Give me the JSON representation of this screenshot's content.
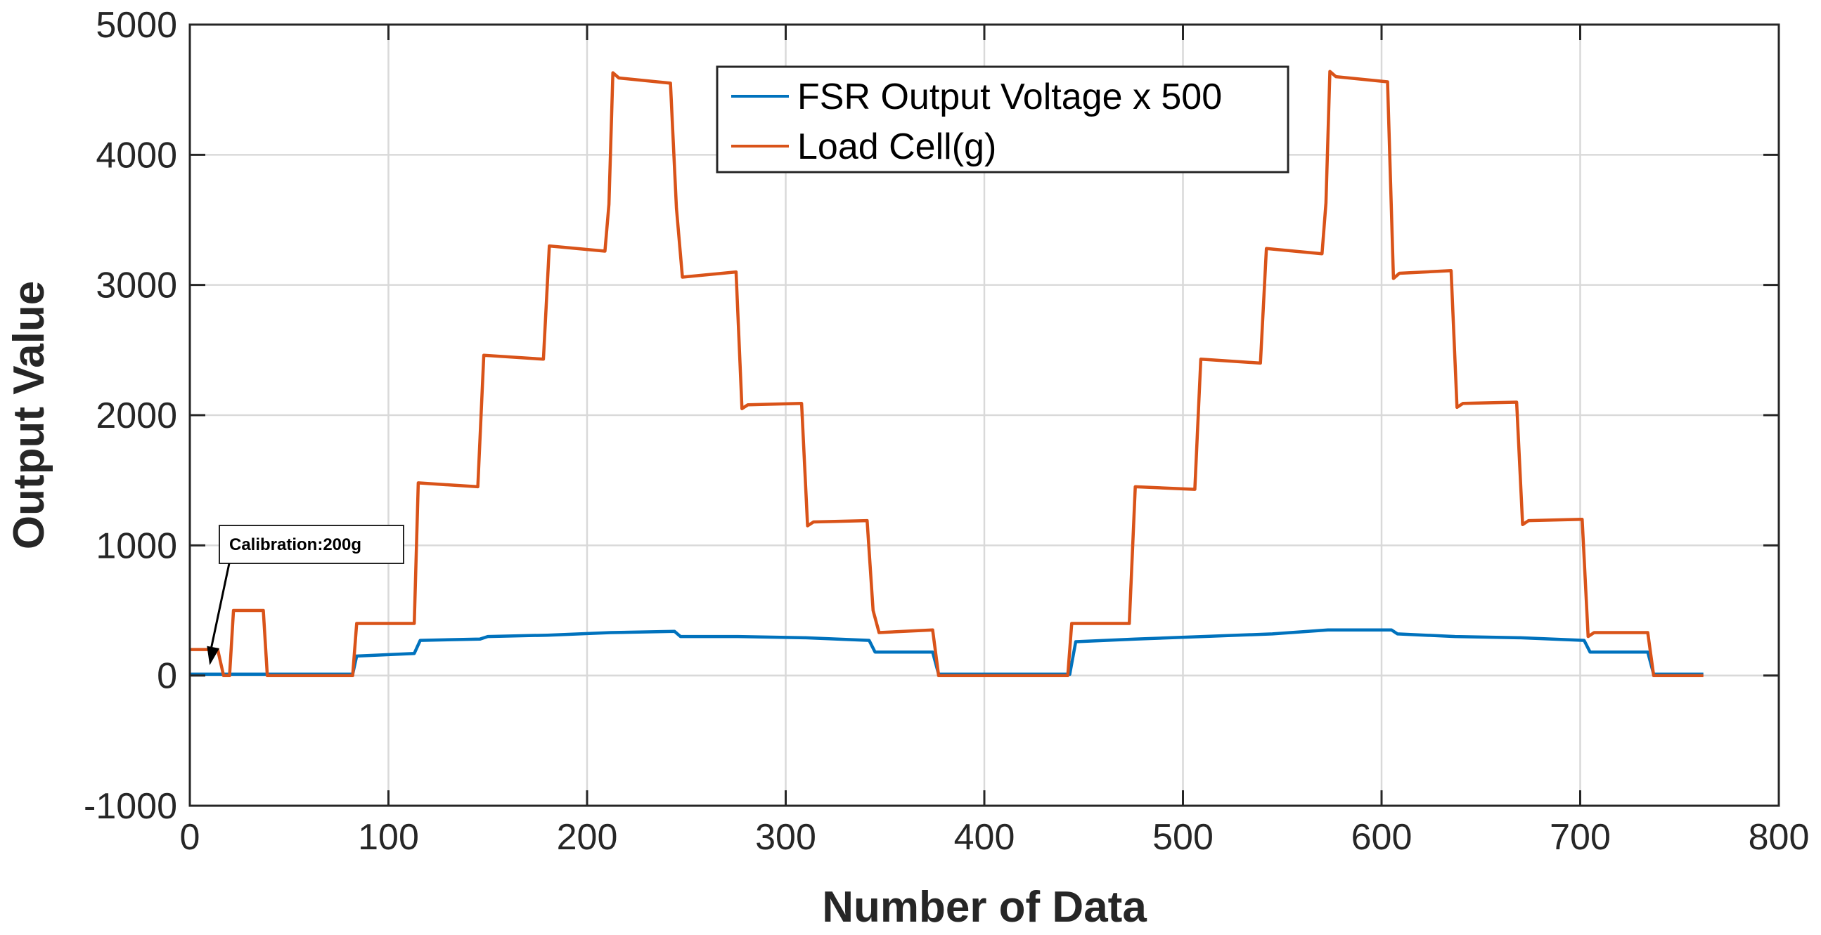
{
  "chart_data": {
    "type": "line",
    "title": "",
    "xlabel": "Number of Data",
    "ylabel": "Output Value",
    "xlim": [
      0,
      800
    ],
    "ylim": [
      -1000,
      5000
    ],
    "x_ticks": [
      0,
      100,
      200,
      300,
      400,
      500,
      600,
      700,
      800
    ],
    "y_ticks": [
      -1000,
      0,
      1000,
      2000,
      3000,
      4000,
      5000
    ],
    "x_tick_labels": [
      "0",
      "100",
      "200",
      "300",
      "400",
      "500",
      "600",
      "700",
      "800"
    ],
    "y_tick_labels": [
      "-1000",
      "0",
      "1000",
      "2000",
      "3000",
      "4000",
      "5000"
    ],
    "grid": true,
    "legend_position": "top-center",
    "annotation": {
      "text": "Calibration:200g",
      "x": 10,
      "y": 80
    },
    "series": [
      {
        "name": "FSR Output Voltage x 500",
        "color": "#0072BD",
        "x": [
          0,
          82,
          84,
          113,
          116,
          146,
          150,
          180,
          212,
          244,
          247,
          276,
          310,
          342,
          345,
          374,
          377,
          443,
          446,
          476,
          510,
          545,
          573,
          605,
          608,
          637,
          670,
          702,
          705,
          734,
          737,
          762
        ],
        "y": [
          10,
          10,
          150,
          170,
          270,
          280,
          300,
          310,
          330,
          340,
          300,
          300,
          290,
          270,
          180,
          180,
          10,
          10,
          260,
          280,
          300,
          320,
          350,
          350,
          320,
          300,
          290,
          270,
          180,
          180,
          10,
          10
        ]
      },
      {
        "name": "Load Cell(g)",
        "color": "#D95319",
        "x": [
          0,
          14,
          17,
          20,
          22,
          37,
          39,
          82,
          84,
          113,
          115,
          145,
          148,
          178,
          181,
          209,
          211,
          213,
          216,
          242,
          245,
          248,
          275,
          278,
          281,
          308,
          311,
          314,
          341,
          344,
          347,
          374,
          377,
          442,
          444,
          473,
          476,
          506,
          509,
          539,
          542,
          570,
          572,
          574,
          577,
          603,
          606,
          609,
          635,
          638,
          641,
          668,
          671,
          674,
          701,
          704,
          707,
          734,
          737,
          762
        ],
        "y": [
          200,
          200,
          0,
          0,
          500,
          500,
          0,
          0,
          400,
          400,
          1480,
          1450,
          2460,
          2430,
          3300,
          3260,
          3620,
          4630,
          4590,
          4550,
          3590,
          3060,
          3100,
          2050,
          2080,
          2090,
          1150,
          1180,
          1190,
          500,
          330,
          350,
          0,
          0,
          400,
          400,
          1450,
          1430,
          2430,
          2400,
          3280,
          3240,
          3630,
          4640,
          4600,
          4560,
          3050,
          3090,
          3110,
          2060,
          2090,
          2100,
          1160,
          1190,
          1200,
          300,
          330,
          330,
          0,
          0
        ]
      }
    ]
  }
}
